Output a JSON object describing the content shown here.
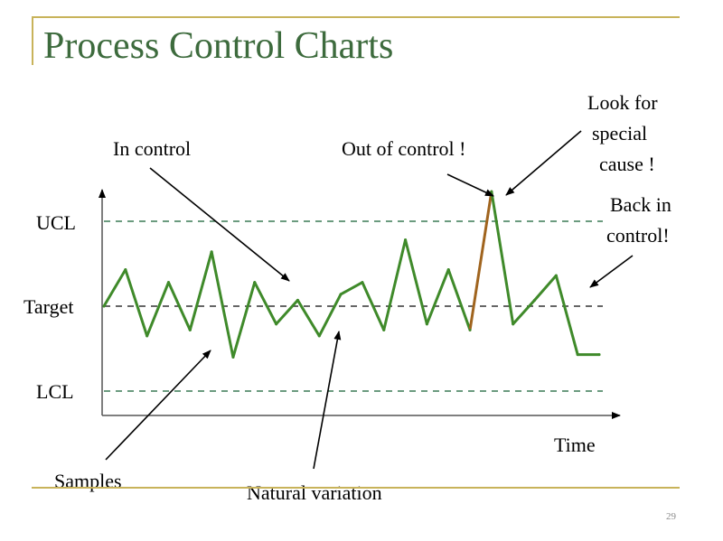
{
  "title": "Process Control Charts",
  "page_number": "29",
  "colors": {
    "title": "#3d6b3d",
    "series": "#3f8a2a",
    "out_of_control_segment": "#a0641e",
    "ucl_lcl_line": "#3a7a55",
    "target_line": "#333333",
    "rule": "#c8b35a"
  },
  "chart_data": {
    "type": "line",
    "title": "",
    "xlabel": "Time",
    "ylabel": "",
    "y_reference_labels": [
      "UCL",
      "Target",
      "LCL"
    ],
    "reference_lines": [
      {
        "label": "UCL",
        "value": 1,
        "style": "dashed"
      },
      {
        "label": "Target",
        "value": 0,
        "style": "dashed"
      },
      {
        "label": "LCL",
        "value": -1,
        "style": "dashed"
      }
    ],
    "ylim": [
      -1.3,
      1.4
    ],
    "xlim": [
      0,
      24
    ],
    "series": [
      {
        "values": [
          0.0,
          0.43,
          -0.35,
          0.28,
          -0.28,
          0.64,
          -0.6,
          0.28,
          -0.21,
          0.07,
          -0.35,
          0.14,
          0.28,
          -0.28,
          0.78,
          -0.21,
          0.43,
          -0.28,
          1.35,
          -0.21,
          0.07,
          0.36,
          -0.57,
          -0.57
        ]
      }
    ],
    "highlight_segment": {
      "from_index": 17,
      "to_index": 18
    },
    "annotations": [
      {
        "text": "In control"
      },
      {
        "text": "Out of control !"
      },
      {
        "text_lines": [
          "Look for",
          "special",
          "cause !"
        ]
      },
      {
        "text_lines": [
          "Back in",
          "control!"
        ]
      },
      {
        "text": "Samples"
      },
      {
        "text": "Natural variation"
      }
    ]
  }
}
